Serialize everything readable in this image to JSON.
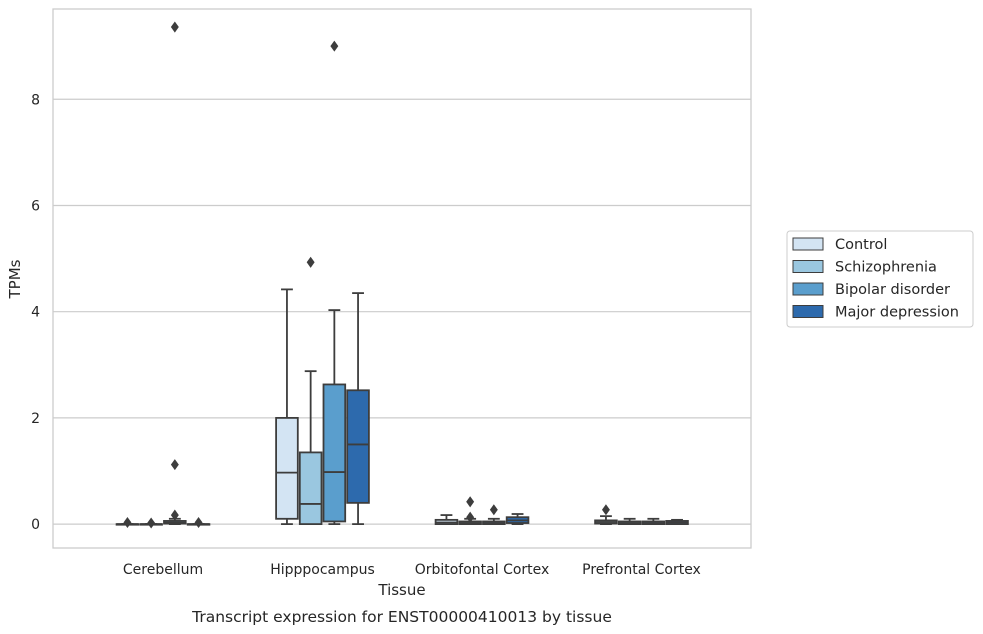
{
  "chart_data": {
    "type": "box",
    "title": "",
    "caption": "Transcript expression for ENST00000410013 by tissue",
    "xlabel": "Tissue",
    "ylabel": "TPMs",
    "ylim": [
      -0.45,
      9.7
    ],
    "yticks": [
      0,
      2,
      4,
      6,
      8
    ],
    "grid": "horizontal",
    "legend_position": "right",
    "categories": [
      "Cerebellum",
      "Hipppocampus",
      "Orbitofontal Cortex",
      "Prefrontal Cortex"
    ],
    "series": [
      {
        "name": "Control",
        "color": "#d3e4f3",
        "boxes": [
          {
            "min": 0,
            "q1": 0,
            "median": 0,
            "q3": 0,
            "max": 0,
            "outliers": [
              0.03
            ]
          },
          {
            "min": 0.0,
            "q1": 0.1,
            "median": 0.97,
            "q3": 2.0,
            "max": 4.42,
            "outliers": []
          },
          {
            "min": 0.0,
            "q1": 0.0,
            "median": 0.03,
            "q3": 0.08,
            "max": 0.17,
            "outliers": []
          },
          {
            "min": 0.0,
            "q1": 0.01,
            "median": 0.04,
            "q3": 0.07,
            "max": 0.15,
            "outliers": [
              0.27
            ]
          }
        ]
      },
      {
        "name": "Schizophrenia",
        "color": "#9ac7e0",
        "boxes": [
          {
            "min": 0,
            "q1": 0,
            "median": 0,
            "q3": 0,
            "max": 0,
            "outliers": [
              0.02
            ]
          },
          {
            "min": 0.0,
            "q1": 0.0,
            "median": 0.38,
            "q3": 1.35,
            "max": 2.88,
            "outliers": [
              4.93
            ]
          },
          {
            "min": 0.0,
            "q1": 0.0,
            "median": 0.02,
            "q3": 0.05,
            "max": 0.1,
            "outliers": [
              0.13,
              0.42
            ]
          },
          {
            "min": 0.0,
            "q1": 0.0,
            "median": 0.02,
            "q3": 0.05,
            "max": 0.1,
            "outliers": []
          }
        ]
      },
      {
        "name": "Bipolar disorder",
        "color": "#5a9ecd",
        "boxes": [
          {
            "min": 0.0,
            "q1": 0.01,
            "median": 0.03,
            "q3": 0.06,
            "max": 0.1,
            "outliers": [
              0.17,
              1.12,
              9.36
            ]
          },
          {
            "min": 0.0,
            "q1": 0.05,
            "median": 0.98,
            "q3": 2.63,
            "max": 4.03,
            "outliers": [
              9.0
            ]
          },
          {
            "min": 0.0,
            "q1": 0.0,
            "median": 0.02,
            "q3": 0.05,
            "max": 0.1,
            "outliers": [
              0.27
            ]
          },
          {
            "min": 0.0,
            "q1": 0.0,
            "median": 0.02,
            "q3": 0.05,
            "max": 0.1,
            "outliers": []
          }
        ]
      },
      {
        "name": "Major depression",
        "color": "#2d6aad",
        "boxes": [
          {
            "min": 0,
            "q1": 0,
            "median": 0,
            "q3": 0,
            "max": 0,
            "outliers": [
              0.03
            ]
          },
          {
            "min": 0.0,
            "q1": 0.4,
            "median": 1.5,
            "q3": 2.52,
            "max": 4.35,
            "outliers": []
          },
          {
            "min": 0.0,
            "q1": 0.02,
            "median": 0.07,
            "q3": 0.13,
            "max": 0.19,
            "outliers": []
          },
          {
            "min": 0.0,
            "q1": 0.0,
            "median": 0.03,
            "q3": 0.06,
            "max": 0.08,
            "outliers": []
          }
        ]
      }
    ]
  }
}
